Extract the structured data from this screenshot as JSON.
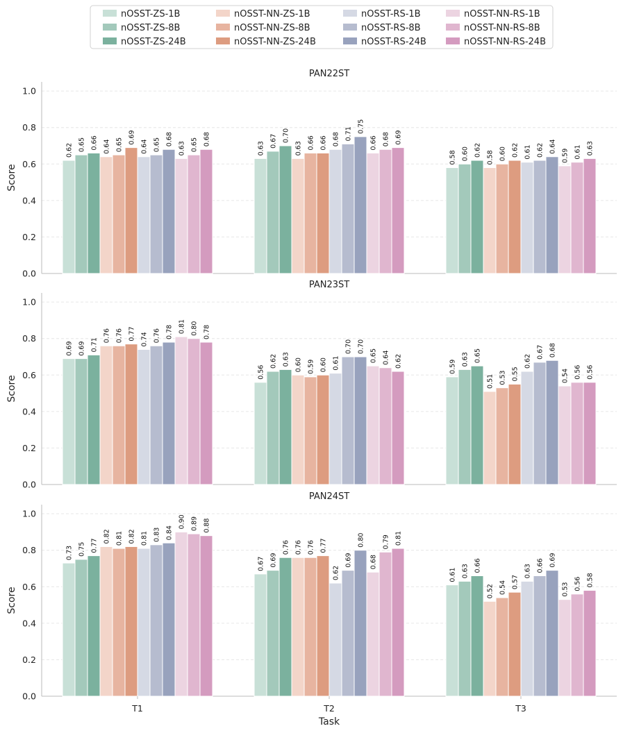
{
  "chart_data": {
    "type": "bar",
    "xlabel": "Task",
    "ylabel": "Score",
    "ylim": [
      0,
      1.05
    ],
    "yticks": [
      "0.0",
      "0.2",
      "0.4",
      "0.6",
      "0.8",
      "1.0"
    ],
    "categories": [
      "T1",
      "T2",
      "T3"
    ],
    "legend": {
      "placement": "top-center",
      "columns": 4,
      "entries": [
        {
          "name": "nOSST-ZS-1B",
          "color": "#c8e0d7"
        },
        {
          "name": "nOSST-ZS-8B",
          "color": "#a3c9bb"
        },
        {
          "name": "nOSST-ZS-24B",
          "color": "#7bb19e"
        },
        {
          "name": "nOSST-NN-ZS-1B",
          "color": "#f3d5c9"
        },
        {
          "name": "nOSST-NN-ZS-8B",
          "color": "#e7b4a0"
        },
        {
          "name": "nOSST-NN-ZS-24B",
          "color": "#dd9c80"
        },
        {
          "name": "nOSST-RS-1B",
          "color": "#d5d9e4"
        },
        {
          "name": "nOSST-RS-8B",
          "color": "#b6bccf"
        },
        {
          "name": "nOSST-RS-24B",
          "color": "#98a2bd"
        },
        {
          "name": "nOSST-NN-RS-1B",
          "color": "#ecd4e1"
        },
        {
          "name": "nOSST-NN-RS-8B",
          "color": "#e0b6cf"
        },
        {
          "name": "nOSST-NN-RS-24B",
          "color": "#d49bbf"
        }
      ]
    },
    "panels": [
      {
        "title": "PAN22ST",
        "series": [
          {
            "name": "nOSST-ZS-1B",
            "values": [
              0.62,
              0.63,
              0.58
            ]
          },
          {
            "name": "nOSST-ZS-8B",
            "values": [
              0.65,
              0.67,
              0.6
            ]
          },
          {
            "name": "nOSST-ZS-24B",
            "values": [
              0.66,
              0.7,
              0.62
            ]
          },
          {
            "name": "nOSST-NN-ZS-1B",
            "values": [
              0.64,
              0.63,
              0.58
            ]
          },
          {
            "name": "nOSST-NN-ZS-8B",
            "values": [
              0.65,
              0.66,
              0.6
            ]
          },
          {
            "name": "nOSST-NN-ZS-24B",
            "values": [
              0.69,
              0.66,
              0.62
            ]
          },
          {
            "name": "nOSST-RS-1B",
            "values": [
              0.64,
              0.68,
              0.61
            ]
          },
          {
            "name": "nOSST-RS-8B",
            "values": [
              0.65,
              0.71,
              0.62
            ]
          },
          {
            "name": "nOSST-RS-24B",
            "values": [
              0.68,
              0.75,
              0.64
            ]
          },
          {
            "name": "nOSST-NN-RS-1B",
            "values": [
              0.63,
              0.66,
              0.59
            ]
          },
          {
            "name": "nOSST-NN-RS-8B",
            "values": [
              0.65,
              0.68,
              0.61
            ]
          },
          {
            "name": "nOSST-NN-RS-24B",
            "values": [
              0.68,
              0.69,
              0.63
            ]
          }
        ]
      },
      {
        "title": "PAN23ST",
        "series": [
          {
            "name": "nOSST-ZS-1B",
            "values": [
              0.69,
              0.56,
              0.59
            ]
          },
          {
            "name": "nOSST-ZS-8B",
            "values": [
              0.69,
              0.62,
              0.63
            ]
          },
          {
            "name": "nOSST-ZS-24B",
            "values": [
              0.71,
              0.63,
              0.65
            ]
          },
          {
            "name": "nOSST-NN-ZS-1B",
            "values": [
              0.76,
              0.6,
              0.51
            ]
          },
          {
            "name": "nOSST-NN-ZS-8B",
            "values": [
              0.76,
              0.59,
              0.53
            ]
          },
          {
            "name": "nOSST-NN-ZS-24B",
            "values": [
              0.77,
              0.6,
              0.55
            ]
          },
          {
            "name": "nOSST-RS-1B",
            "values": [
              0.74,
              0.61,
              0.62
            ]
          },
          {
            "name": "nOSST-RS-8B",
            "values": [
              0.76,
              0.7,
              0.67
            ]
          },
          {
            "name": "nOSST-RS-24B",
            "values": [
              0.78,
              0.7,
              0.68
            ]
          },
          {
            "name": "nOSST-NN-RS-1B",
            "values": [
              0.81,
              0.65,
              0.54
            ]
          },
          {
            "name": "nOSST-NN-RS-8B",
            "values": [
              0.8,
              0.64,
              0.56
            ]
          },
          {
            "name": "nOSST-NN-RS-24B",
            "values": [
              0.78,
              0.62,
              0.56
            ]
          }
        ]
      },
      {
        "title": "PAN24ST",
        "series": [
          {
            "name": "nOSST-ZS-1B",
            "values": [
              0.73,
              0.67,
              0.61
            ]
          },
          {
            "name": "nOSST-ZS-8B",
            "values": [
              0.75,
              0.69,
              0.63
            ]
          },
          {
            "name": "nOSST-ZS-24B",
            "values": [
              0.77,
              0.76,
              0.66
            ]
          },
          {
            "name": "nOSST-NN-ZS-1B",
            "values": [
              0.82,
              0.76,
              0.52
            ]
          },
          {
            "name": "nOSST-NN-ZS-8B",
            "values": [
              0.81,
              0.76,
              0.54
            ]
          },
          {
            "name": "nOSST-NN-ZS-24B",
            "values": [
              0.82,
              0.77,
              0.57
            ]
          },
          {
            "name": "nOSST-RS-1B",
            "values": [
              0.81,
              0.62,
              0.63
            ]
          },
          {
            "name": "nOSST-RS-8B",
            "values": [
              0.83,
              0.69,
              0.66
            ]
          },
          {
            "name": "nOSST-RS-24B",
            "values": [
              0.84,
              0.8,
              0.69
            ]
          },
          {
            "name": "nOSST-NN-RS-1B",
            "values": [
              0.9,
              0.68,
              0.53
            ]
          },
          {
            "name": "nOSST-NN-RS-8B",
            "values": [
              0.89,
              0.79,
              0.56
            ]
          },
          {
            "name": "nOSST-NN-RS-24B",
            "values": [
              0.88,
              0.81,
              0.58
            ]
          }
        ]
      }
    ]
  }
}
